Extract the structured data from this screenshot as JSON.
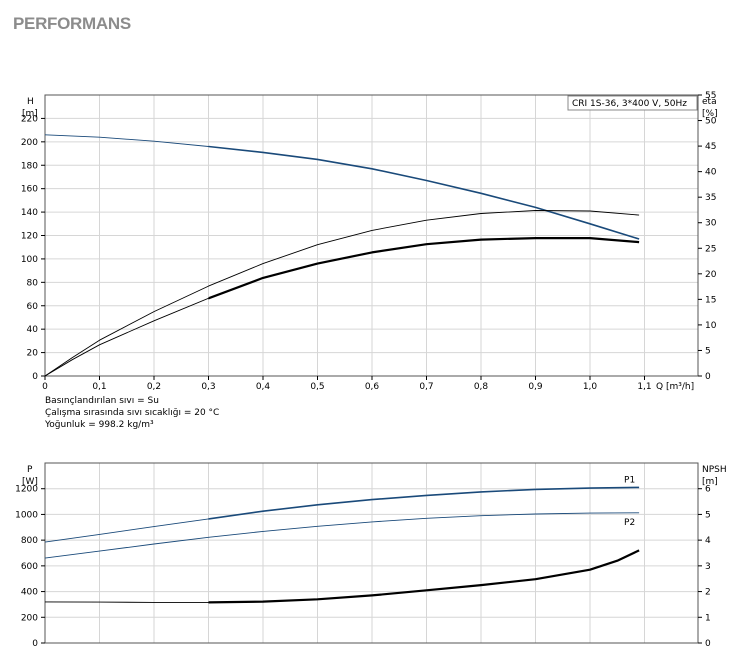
{
  "page": {
    "heading": "PERFORMANS"
  },
  "conditions": [
    "Basınçlandırılan sıvı = Su",
    "Çalışma sırasında sıvı sıcaklığı = 20 °C",
    "Yoğunluk = 998.2 kg/m³"
  ],
  "chart_data": [
    {
      "type": "line",
      "title": "",
      "legend_box": "CRI 1S-36, 3*400 V, 50Hz",
      "x_axis": {
        "label": "Q [m³/h]",
        "range": [
          0,
          1.1
        ],
        "ticks": [
          "0",
          "0,1",
          "0,2",
          "0,3",
          "0,4",
          "0,5",
          "0,6",
          "0,7",
          "0,8",
          "0,9",
          "1,0",
          "1,1"
        ]
      },
      "y_left": {
        "label": "H",
        "unit": "[m]",
        "range": [
          0,
          240
        ],
        "ticks": [
          "0",
          "20",
          "40",
          "60",
          "80",
          "100",
          "120",
          "140",
          "160",
          "180",
          "200",
          "220"
        ]
      },
      "y_right": {
        "label": "eta",
        "unit": "[%]",
        "range": [
          0,
          55
        ],
        "ticks": [
          "0",
          "5",
          "10",
          "15",
          "20",
          "25",
          "30",
          "35",
          "40",
          "45",
          "50",
          "55"
        ]
      },
      "grid": true,
      "series": [
        {
          "axis": "left",
          "color": "#1a4a7a",
          "width": 1.6,
          "thin_until": 0.3,
          "points": [
            [
              0,
              206
            ],
            [
              0.1,
              204
            ],
            [
              0.2,
              200.5
            ],
            [
              0.3,
              196
            ],
            [
              0.4,
              191
            ],
            [
              0.5,
              185
            ],
            [
              0.6,
              177
            ],
            [
              0.7,
              167
            ],
            [
              0.8,
              156
            ],
            [
              0.9,
              144
            ],
            [
              1.0,
              130
            ],
            [
              1.09,
              117
            ]
          ]
        },
        {
          "axis": "right",
          "color": "#000000",
          "width": 0.9,
          "thin_until": 0,
          "points": [
            [
              0,
              0
            ],
            [
              0.05,
              3.6
            ],
            [
              0.1,
              7
            ],
            [
              0.2,
              12.6
            ],
            [
              0.3,
              17.6
            ],
            [
              0.4,
              22
            ],
            [
              0.5,
              25.7
            ],
            [
              0.6,
              28.5
            ],
            [
              0.7,
              30.5
            ],
            [
              0.8,
              31.8
            ],
            [
              0.9,
              32.4
            ],
            [
              1.0,
              32.3
            ],
            [
              1.09,
              31.5
            ]
          ]
        },
        {
          "axis": "right",
          "color": "#000000",
          "width": 2.2,
          "thin_until": 0.3,
          "points": [
            [
              0,
              0
            ],
            [
              0.05,
              3.2
            ],
            [
              0.1,
              6.1
            ],
            [
              0.2,
              10.8
            ],
            [
              0.3,
              15.2
            ],
            [
              0.4,
              19.2
            ],
            [
              0.5,
              22
            ],
            [
              0.6,
              24.2
            ],
            [
              0.7,
              25.8
            ],
            [
              0.8,
              26.7
            ],
            [
              0.9,
              27
            ],
            [
              1.0,
              27
            ],
            [
              1.09,
              26.2
            ]
          ]
        }
      ]
    },
    {
      "type": "line",
      "title": "",
      "x_axis": {
        "label": "",
        "range": [
          0,
          1.1
        ]
      },
      "y_left": {
        "label": "P",
        "unit": "[W]",
        "range": [
          0,
          1400
        ],
        "ticks": [
          "0",
          "200",
          "400",
          "600",
          "800",
          "1000",
          "1200"
        ]
      },
      "y_right": {
        "label": "NPSH",
        "unit": "[m]",
        "range": [
          0,
          7
        ],
        "ticks": [
          "0",
          "1",
          "2",
          "3",
          "4",
          "5",
          "6"
        ]
      },
      "grid": true,
      "series": [
        {
          "name": "P1",
          "axis": "left",
          "color": "#1a4a7a",
          "width": 1.6,
          "thin_until": 0.3,
          "points": [
            [
              0,
              785
            ],
            [
              0.1,
              845
            ],
            [
              0.2,
              905
            ],
            [
              0.3,
              965
            ],
            [
              0.4,
              1025
            ],
            [
              0.5,
              1075
            ],
            [
              0.6,
              1115
            ],
            [
              0.7,
              1148
            ],
            [
              0.8,
              1175
            ],
            [
              0.9,
              1195
            ],
            [
              1.0,
              1205
            ],
            [
              1.09,
              1210
            ]
          ]
        },
        {
          "name": "P2",
          "axis": "left",
          "color": "#1a4a7a",
          "width": 0.9,
          "thin_until": 0,
          "points": [
            [
              0,
              660
            ],
            [
              0.1,
              715
            ],
            [
              0.2,
              770
            ],
            [
              0.3,
              822
            ],
            [
              0.4,
              868
            ],
            [
              0.5,
              908
            ],
            [
              0.6,
              942
            ],
            [
              0.7,
              970
            ],
            [
              0.8,
              990
            ],
            [
              0.9,
              1003
            ],
            [
              1.0,
              1010
            ],
            [
              1.09,
              1013
            ]
          ]
        },
        {
          "axis": "right",
          "color": "#000000",
          "width": 2.2,
          "thin_until": 0.3,
          "points": [
            [
              0,
              1.6
            ],
            [
              0.1,
              1.59
            ],
            [
              0.2,
              1.58
            ],
            [
              0.3,
              1.58
            ],
            [
              0.4,
              1.61
            ],
            [
              0.5,
              1.7
            ],
            [
              0.6,
              1.85
            ],
            [
              0.7,
              2.05
            ],
            [
              0.8,
              2.25
            ],
            [
              0.9,
              2.48
            ],
            [
              1.0,
              2.85
            ],
            [
              1.05,
              3.2
            ],
            [
              1.09,
              3.6
            ]
          ]
        }
      ]
    }
  ]
}
